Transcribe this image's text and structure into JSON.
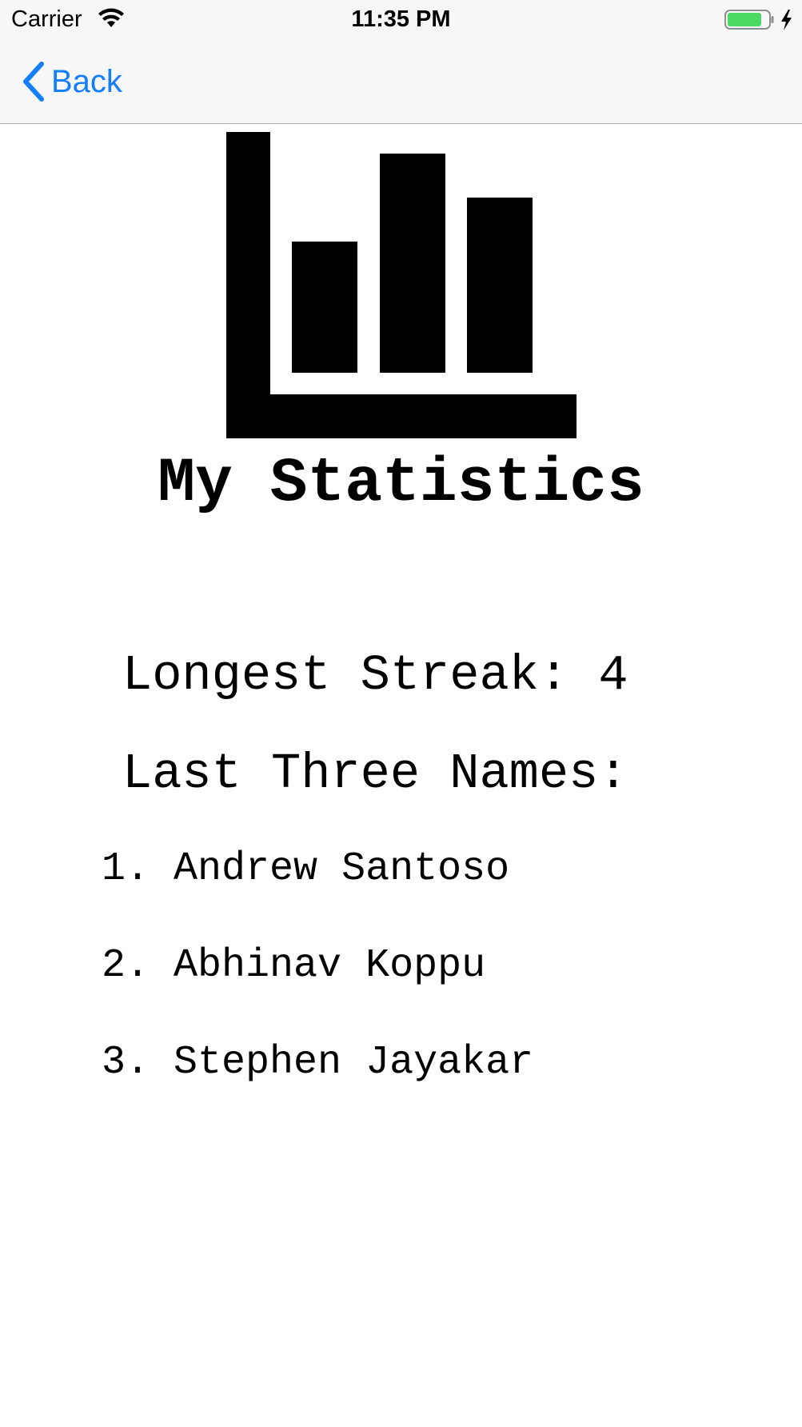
{
  "status_bar": {
    "carrier": "Carrier",
    "time": "11:35 PM",
    "battery_color": "#4cd964"
  },
  "nav": {
    "back_label": "Back",
    "accent_color": "#157efb"
  },
  "logo": {
    "icon": "bar-chart-icon"
  },
  "title": "My Statistics",
  "streak": {
    "label": "Longest Streak:",
    "value": "4"
  },
  "last_names": {
    "heading": "Last Three Names:",
    "items": [
      {
        "number": "1.",
        "name": "Andrew Santoso"
      },
      {
        "number": "2.",
        "name": "Abhinav Koppu"
      },
      {
        "number": "3.",
        "name": "Stephen Jayakar"
      }
    ]
  }
}
